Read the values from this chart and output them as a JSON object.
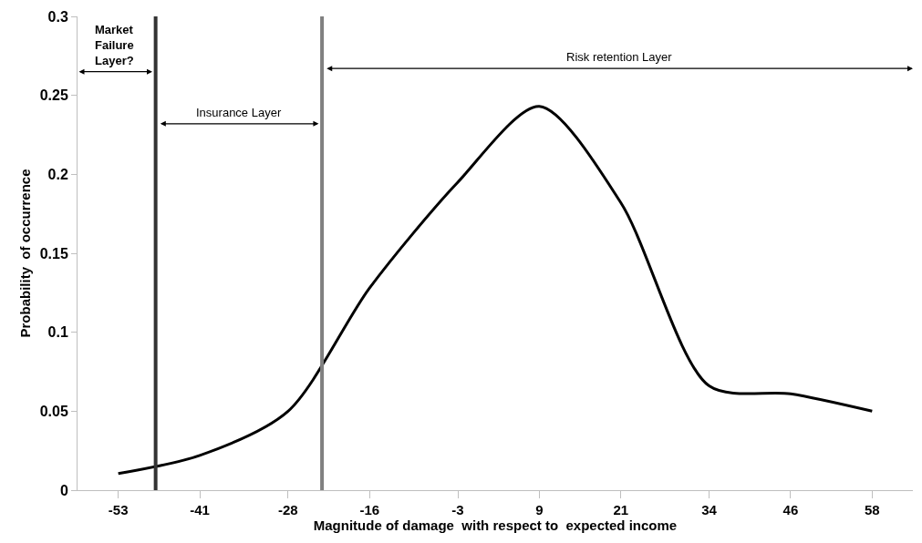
{
  "chart_data": {
    "type": "line",
    "xlabel": "Magnitude of damage  with respect to  expected income",
    "ylabel": "Probability  of occurrence",
    "x": [
      -53,
      -41,
      -28,
      -16,
      -3,
      9,
      21,
      34,
      46,
      58
    ],
    "series": [
      {
        "color": "#000000",
        "values": [
          0.0105,
          0.022,
          0.05,
          0.128,
          0.195,
          0.243,
          0.182,
          0.066,
          0.061,
          0.05
        ]
      }
    ],
    "xlim": [
      -59,
      64
    ],
    "xticks": [
      -53,
      -41,
      -28,
      -16,
      -3,
      9,
      21,
      34,
      46,
      58
    ],
    "ylim": [
      0,
      0.3
    ],
    "yticks": [
      0,
      0.05,
      0.1,
      0.15,
      0.2,
      0.25,
      0.3
    ],
    "ref_lines": [
      {
        "axis": "x",
        "value": -47.5,
        "color": "#333333"
      },
      {
        "axis": "x",
        "value": -23,
        "color": "#808080"
      }
    ],
    "annotations": [
      "Market Failure Layer?",
      "Insurance Layer",
      "Risk retention Layer"
    ],
    "marker": "none",
    "line_style": "solid"
  }
}
